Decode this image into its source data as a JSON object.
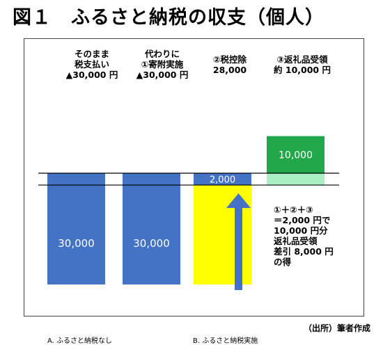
{
  "title": "図１　ふるさと納税の収支（個人）",
  "source": "（出所）筆者作成",
  "labels": {
    "tax_paid": [
      "そのまま",
      "税支払い",
      "▲30,000 円"
    ],
    "donation": [
      "代わりに",
      "①寄附実施",
      "▲30,000 円"
    ],
    "deduction": [
      "②税控除",
      "28,000"
    ],
    "gift": [
      "③返礼品受領",
      "約 10,000 円"
    ]
  },
  "note": [
    "①＋②＋③",
    "＝2,000 円で",
    "10,000 円分",
    "返礼品受領",
    "差引 8,000 円",
    "の得"
  ],
  "colors": {
    "blue": "#4472c4",
    "yellow": "#ffff00",
    "green": "#22a84a",
    "light_green": "#a9efc3",
    "arrow": "#4472c4"
  },
  "chart_data": {
    "type": "bar",
    "categories": [
      "A. ふるさと納税なし",
      "B. ふるさと納税実施"
    ],
    "bars": [
      {
        "group": "A",
        "label": "30,000",
        "value": -30000,
        "color": "blue"
      },
      {
        "group": "B",
        "label": "30,000",
        "value": -30000,
        "color": "blue"
      },
      {
        "group": "B",
        "label": "2,000",
        "value": -2000,
        "color": "blue",
        "covered": 28000
      },
      {
        "group": "B",
        "label": "10,000",
        "value": 10000,
        "color": "green",
        "over_line": 2000
      }
    ]
  }
}
